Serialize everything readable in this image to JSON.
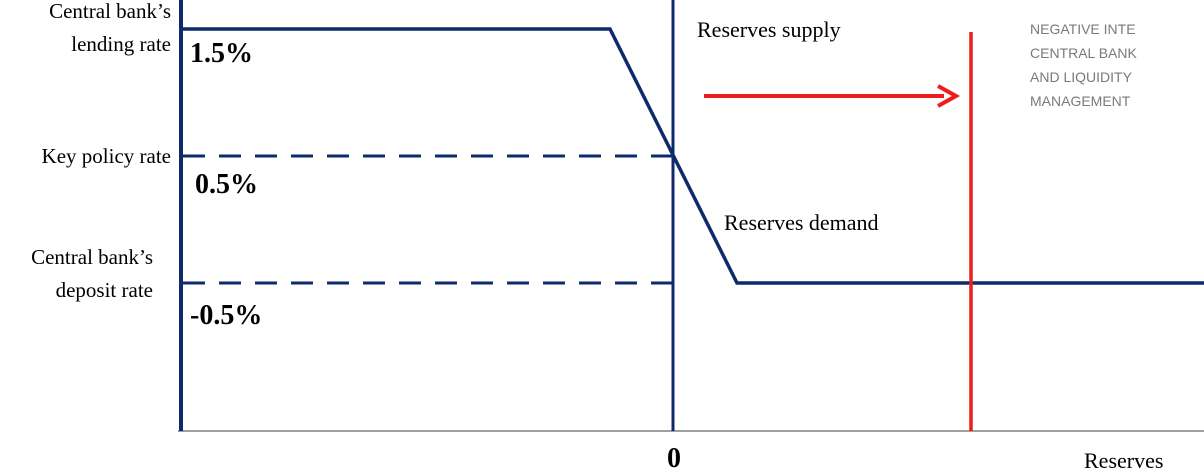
{
  "colors": {
    "navy": "#0f2a6b",
    "red": "#ee1c1c",
    "axis": "#a0a0a0",
    "text": "#000000",
    "watermark": "#7a7a7a"
  },
  "labels": {
    "lending_rate_line1": "Central bank’s",
    "lending_rate_line2": "lending rate",
    "key_policy_rate": "Key policy rate",
    "deposit_rate_line1": "Central bank’s",
    "deposit_rate_line2": "deposit rate",
    "rate_high": "1.5%",
    "rate_mid": "0.5%",
    "rate_low": "-0.5%",
    "zero": "0",
    "x_axis": "Reserves",
    "supply": "Reserves supply",
    "demand": "Reserves demand"
  },
  "watermark": {
    "line1": "NEGATIVE INTE",
    "line2": "CENTRAL BANK",
    "line3": "AND LIQUIDITY",
    "line4": "MANAGEMENT"
  },
  "rates": {
    "lending": 1.5,
    "key_policy": 0.5,
    "deposit": -0.5
  }
}
